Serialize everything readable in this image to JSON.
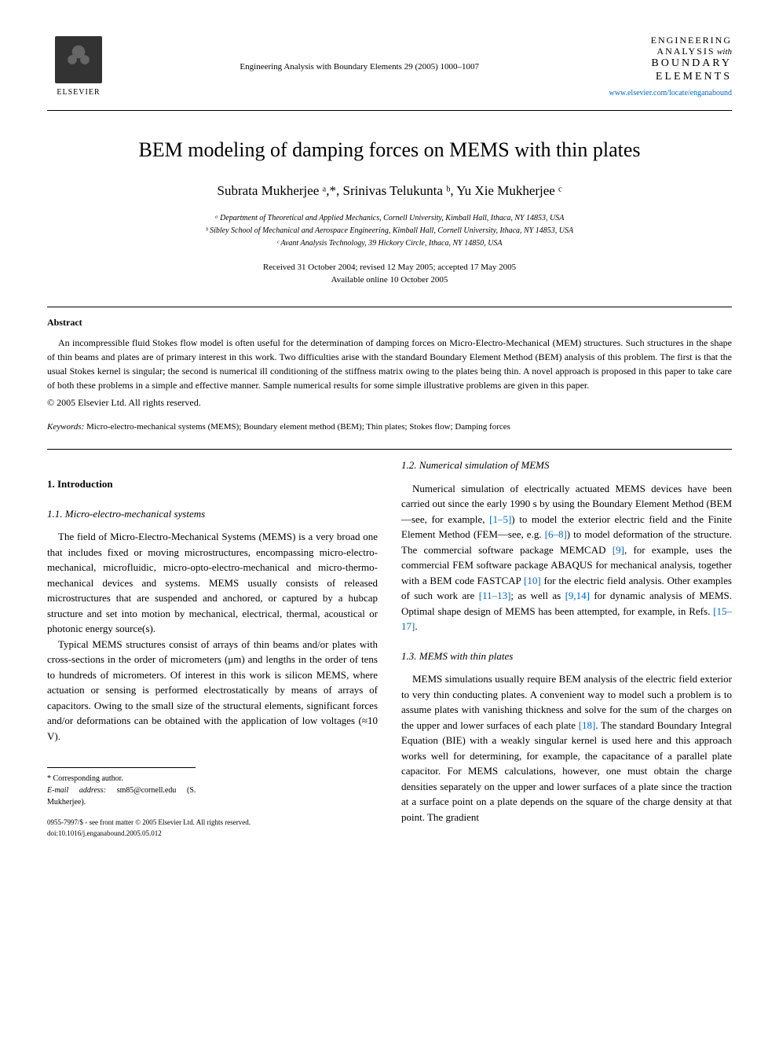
{
  "header": {
    "publisher": "ELSEVIER",
    "citation": "Engineering Analysis with Boundary Elements 29 (2005) 1000–1007",
    "journal_logo": {
      "line1": "ENGINEERING",
      "line2": "ANALYSIS",
      "line2_suffix": "with",
      "line3": "BOUNDARY",
      "line4": "ELEMENTS"
    },
    "journal_url": "www.elsevier.com/locate/enganabound"
  },
  "title": "BEM modeling of damping forces on MEMS with thin plates",
  "authors": "Subrata Mukherjee ᵃ,*, Srinivas Telukunta ᵇ, Yu Xie Mukherjee ᶜ",
  "affiliations": {
    "a": "ᵃ Department of Theoretical and Applied Mechanics, Cornell University, Kimball Hall, Ithaca, NY 14853, USA",
    "b": "ᵇ Sibley School of Mechanical and Aerospace Engineering, Kimball Hall, Cornell University, Ithaca, NY 14853, USA",
    "c": "ᶜ Avant Analysis Technology, 39 Hickory Circle, Ithaca, NY 14850, USA"
  },
  "dates": {
    "received": "Received 31 October 2004; revised 12 May 2005; accepted 17 May 2005",
    "available": "Available online 10 October 2005"
  },
  "abstract": {
    "heading": "Abstract",
    "text": "An incompressible fluid Stokes flow model is often useful for the determination of damping forces on Micro-Electro-Mechanical (MEM) structures. Such structures in the shape of thin beams and plates are of primary interest in this work. Two difficulties arise with the standard Boundary Element Method (BEM) analysis of this problem. The first is that the usual Stokes kernel is singular; the second is numerical ill conditioning of the stiffness matrix owing to the plates being thin. A novel approach is proposed in this paper to take care of both these problems in a simple and effective manner. Sample numerical results for some simple illustrative problems are given in this paper.",
    "copyright": "© 2005 Elsevier Ltd. All rights reserved."
  },
  "keywords": {
    "label": "Keywords:",
    "text": " Micro-electro-mechanical systems (MEMS); Boundary element method (BEM); Thin plates; Stokes flow; Damping forces"
  },
  "sections": {
    "intro_heading": "1. Introduction",
    "sub11_heading": "1.1. Micro-electro-mechanical systems",
    "sub11_p1": "The field of Micro-Electro-Mechanical Systems (MEMS) is a very broad one that includes fixed or moving microstructures, encompassing micro-electro-mechanical, microfluidic, micro-opto-electro-mechanical and micro-thermo-mechanical devices and systems. MEMS usually consists of released microstructures that are suspended and anchored, or captured by a hubcap structure and set into motion by mechanical, electrical, thermal, acoustical or photonic energy source(s).",
    "sub11_p2": "Typical MEMS structures consist of arrays of thin beams and/or plates with cross-sections in the order of micrometers (μm) and lengths in the order of tens to hundreds of micrometers. Of interest in this work is silicon MEMS, where actuation or sensing is performed electrostatically by means of arrays of capacitors. Owing to the small size of the structural elements, significant forces and/or deformations can be obtained with the application of low voltages (≈10 V).",
    "sub12_heading": "1.2. Numerical simulation of MEMS",
    "sub12_p1_part1": "Numerical simulation of electrically actuated MEMS devices have been carried out since the early 1990 s by using the Boundary Element Method (BEM—see, for example, ",
    "sub12_p1_ref1": "[1–5]",
    "sub12_p1_part2": ") to model the exterior electric field and the Finite Element Method (FEM—see, e.g. ",
    "sub12_p1_ref2": "[6–8]",
    "sub12_p1_part3": ") to model deformation of the structure. The commercial software package MEMCAD ",
    "sub12_p1_ref3": "[9]",
    "sub12_p1_part4": ", for example, uses the commercial FEM software package ABAQUS for mechanical analysis, together with a BEM code FASTCAP ",
    "sub12_p1_ref4": "[10]",
    "sub12_p1_part5": " for the electric field analysis. Other examples of such work are ",
    "sub12_p1_ref5": "[11–13]",
    "sub12_p1_part6": "; as well as ",
    "sub12_p1_ref6": "[9,14]",
    "sub12_p1_part7": " for dynamic analysis of MEMS. Optimal shape design of MEMS has been attempted, for example, in Refs. ",
    "sub12_p1_ref7": "[15–17]",
    "sub12_p1_part8": ".",
    "sub13_heading": "1.3. MEMS with thin plates",
    "sub13_p1_part1": "MEMS simulations usually require BEM analysis of the electric field exterior to very thin conducting plates. A convenient way to model such a problem is to assume plates with vanishing thickness and solve for the sum of the charges on the upper and lower surfaces of each plate ",
    "sub13_p1_ref1": "[18]",
    "sub13_p1_part2": ". The standard Boundary Integral Equation (BIE) with a weakly singular kernel is used here and this approach works well for determining, for example, the capacitance of a parallel plate capacitor. For MEMS calculations, however, one must obtain the charge densities separately on the upper and lower surfaces of a plate since the traction at a surface point on a plate depends on the square of the charge density at that point. The gradient"
  },
  "footnote": {
    "corresponding": "* Corresponding author.",
    "email_label": "E-mail address:",
    "email": " sm85@cornell.edu (S. Mukherjee)."
  },
  "footer": {
    "issn": "0955-7997/$ - see front matter © 2005 Elsevier Ltd. All rights reserved.",
    "doi": "doi:10.1016/j.enganabound.2005.05.012"
  },
  "colors": {
    "text": "#000000",
    "background": "#ffffff",
    "link": "#0066cc"
  },
  "fonts": {
    "body_family": "Georgia, Times New Roman, serif",
    "title_size": 26,
    "author_size": 17,
    "body_size": 13,
    "small_size": 11,
    "footnote_size": 10
  }
}
